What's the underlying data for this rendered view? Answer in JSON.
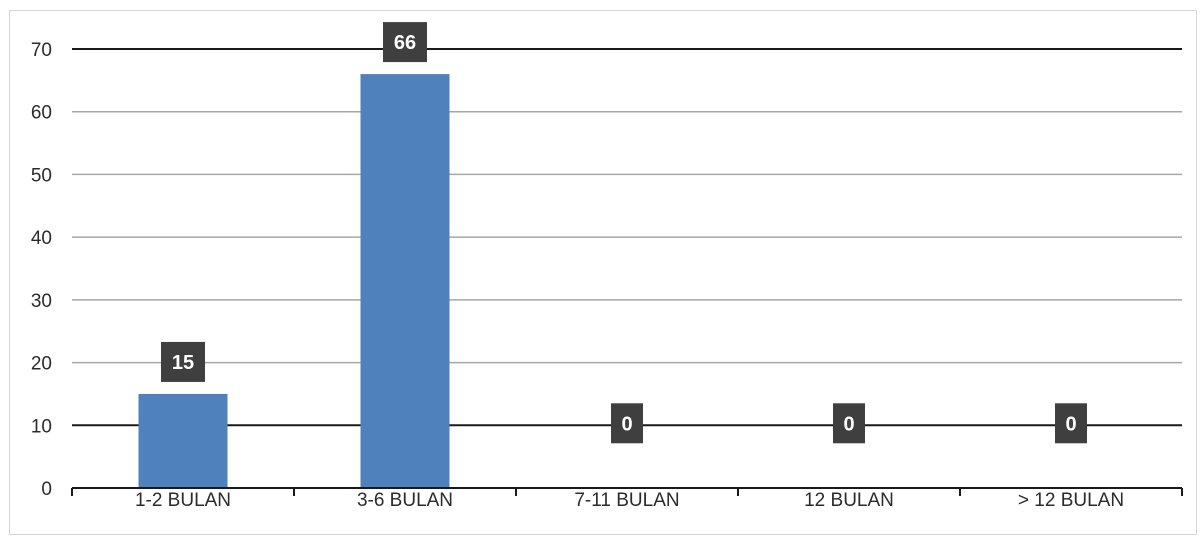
{
  "chart_data": {
    "type": "bar",
    "categories": [
      "1-2 BULAN",
      "3-6 BULAN",
      "7-11 BULAN",
      "12 BULAN",
      "> 12 BULAN"
    ],
    "values": [
      15,
      66,
      0,
      0,
      0
    ],
    "data_labels": [
      "15",
      "66",
      "0",
      "0",
      "0"
    ],
    "yticks": [
      "0",
      "10",
      "20",
      "30",
      "40",
      "50",
      "60",
      "70"
    ],
    "ylim": [
      0,
      70
    ],
    "grid": true,
    "legend": "none",
    "colors": {
      "bar": "#4f81bd",
      "label_bg": "#3f3f3f",
      "grid": "#a6a6a6",
      "grid_dark": "#1a1a1a"
    }
  }
}
